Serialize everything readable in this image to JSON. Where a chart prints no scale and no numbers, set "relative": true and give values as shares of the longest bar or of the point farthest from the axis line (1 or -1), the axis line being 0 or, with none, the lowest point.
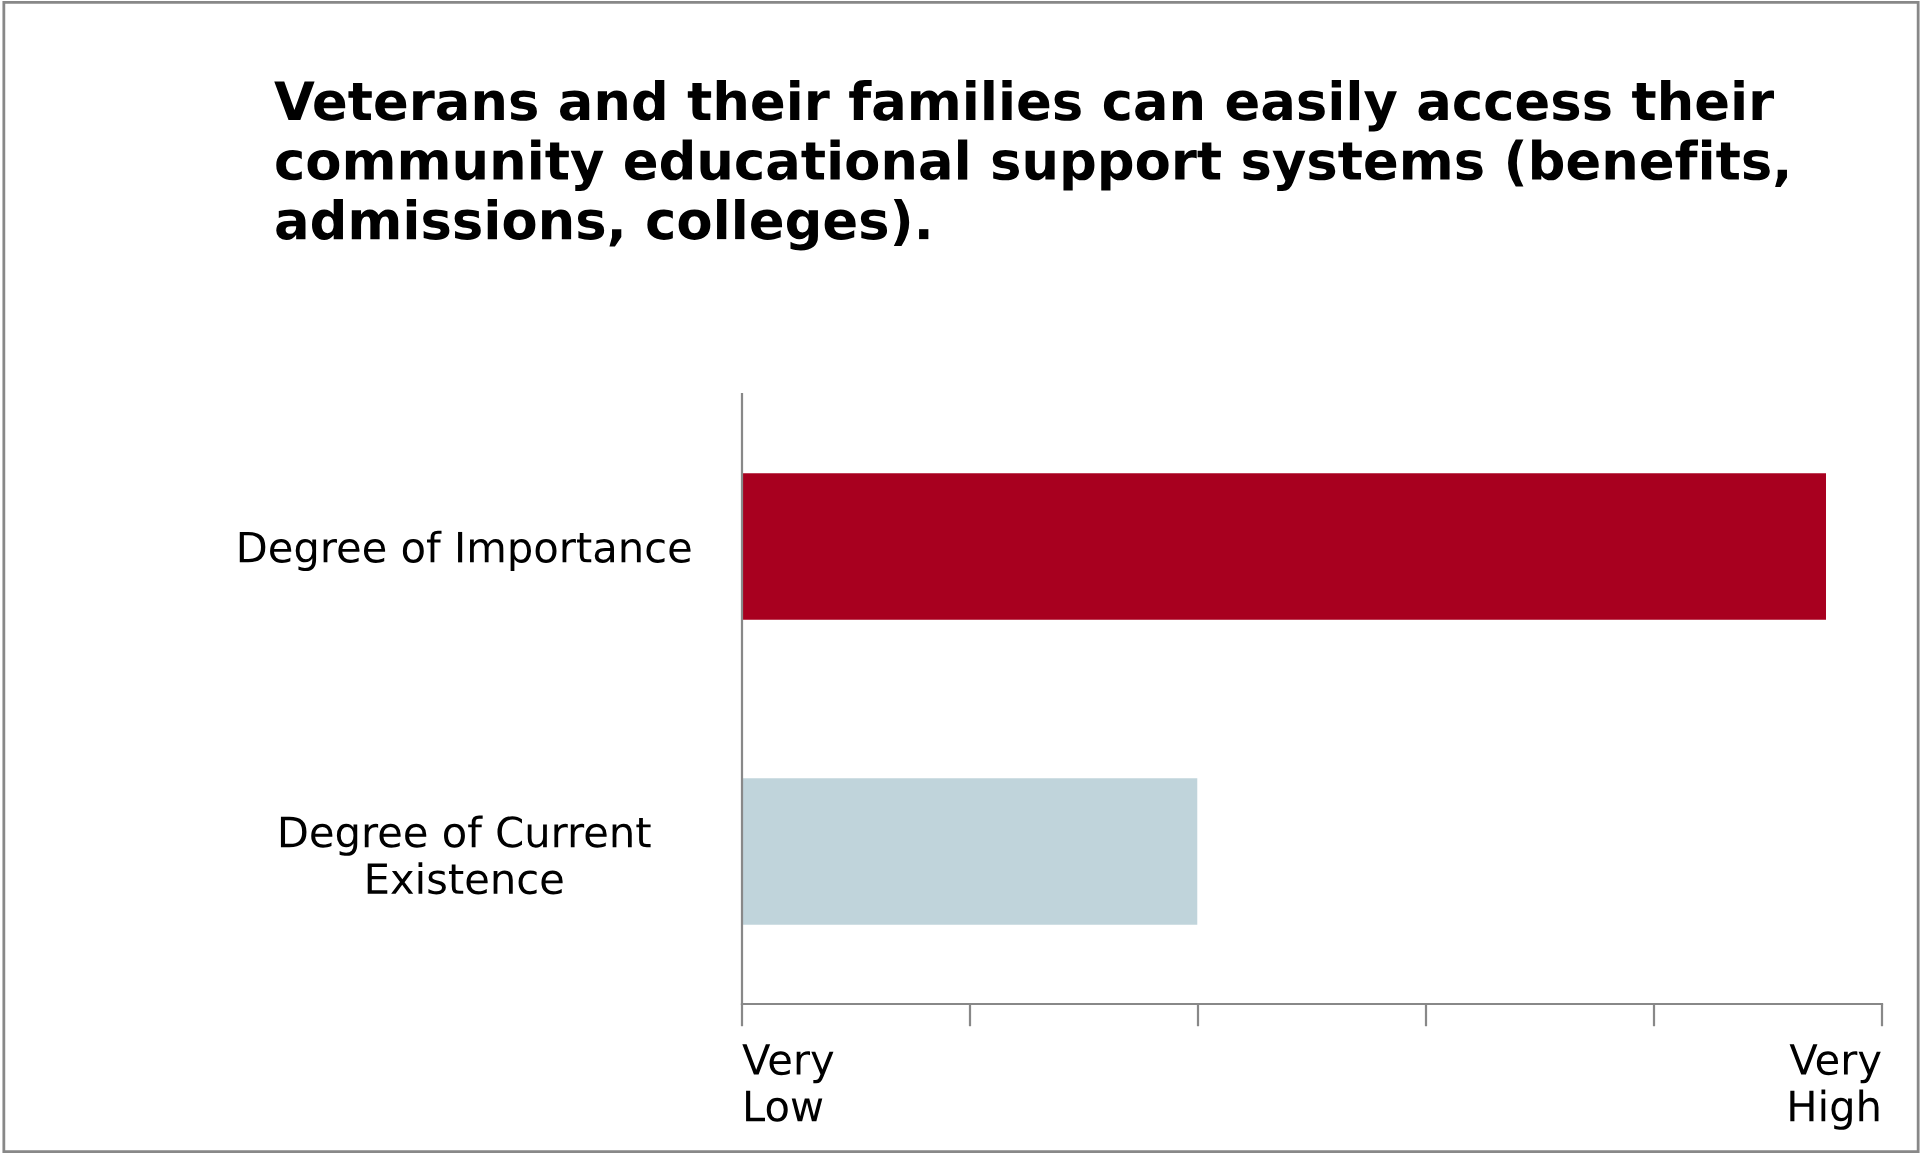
{
  "chart_data": {
    "type": "bar",
    "orientation": "horizontal",
    "relative": true,
    "title": "Veterans and their families can easily access their community educational support systems (benefits, admissions, colleges).",
    "categories": [
      "Degree of Importance",
      "Degree of Current\nExistence"
    ],
    "values": [
      1,
      0.42
    ],
    "colors": [
      "#a8001f",
      "#c0d4db"
    ],
    "annotations": [
      "Very\nLow",
      "Very\nHigh"
    ],
    "grid": false,
    "legend": false
  }
}
